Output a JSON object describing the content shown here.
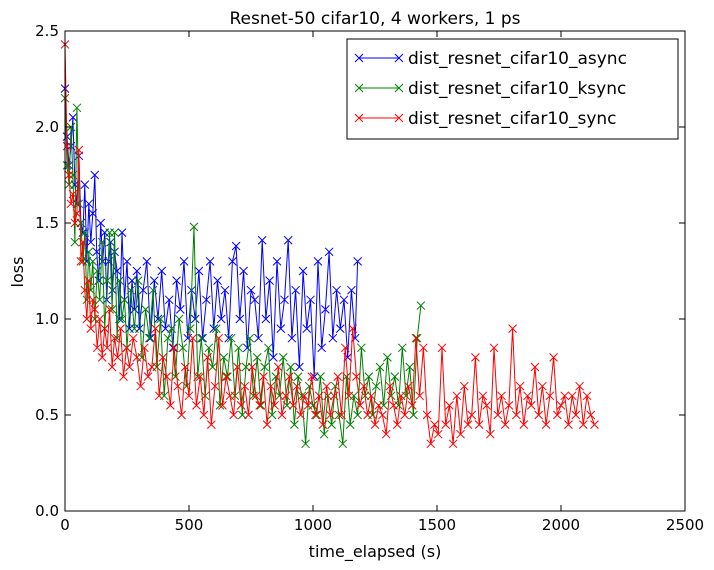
{
  "chart_data": {
    "type": "line",
    "title": "Resnet-50 cifar10, 4 workers, 1 ps",
    "xlabel": "time_elapsed (s)",
    "ylabel": "loss",
    "xlim": [
      0,
      2500
    ],
    "ylim": [
      0.0,
      2.5
    ],
    "xticks": [
      0,
      500,
      1000,
      1500,
      2000,
      2500
    ],
    "xtick_labels": [
      "0",
      "500",
      "1000",
      "1500",
      "2000",
      "2500"
    ],
    "yticks": [
      0.0,
      0.5,
      1.0,
      1.5,
      2.0,
      2.5
    ],
    "ytick_labels": [
      "0.0",
      "0.5",
      "1.0",
      "1.5",
      "2.0",
      "2.5"
    ],
    "grid": false,
    "legend_position": "top-right",
    "marker": "x",
    "series": [
      {
        "name": "dist_resnet_cifar10_async",
        "color": "#0000ff",
        "x": [
          0,
          8,
          16,
          24,
          32,
          40,
          48,
          56,
          64,
          72,
          80,
          88,
          96,
          104,
          112,
          120,
          128,
          136,
          144,
          152,
          160,
          168,
          176,
          184,
          192,
          200,
          210,
          220,
          230,
          240,
          250,
          260,
          270,
          280,
          290,
          300,
          315,
          330,
          345,
          360,
          375,
          390,
          405,
          420,
          435,
          450,
          465,
          480,
          495,
          510,
          525,
          540,
          555,
          570,
          585,
          600,
          615,
          630,
          645,
          660,
          675,
          690,
          705,
          720,
          735,
          750,
          765,
          780,
          795,
          810,
          825,
          840,
          855,
          870,
          885,
          900,
          915,
          930,
          945,
          960,
          975,
          990,
          1005,
          1020,
          1035,
          1050,
          1065,
          1080,
          1095,
          1110,
          1125,
          1140,
          1155,
          1170,
          1180
        ],
        "y": [
          2.2,
          1.95,
          1.8,
          1.9,
          2.05,
          1.7,
          1.6,
          1.85,
          1.5,
          1.45,
          1.7,
          1.3,
          1.6,
          1.4,
          1.55,
          1.75,
          1.35,
          1.2,
          1.5,
          1.3,
          1.45,
          1.1,
          1.3,
          1.4,
          1.15,
          1.35,
          1.25,
          1.0,
          1.45,
          1.1,
          1.3,
          0.95,
          1.2,
          1.05,
          1.25,
          0.95,
          1.15,
          1.3,
          0.9,
          1.2,
          1.0,
          1.25,
          0.95,
          1.1,
          0.85,
          1.2,
          1.05,
          1.3,
          0.9,
          1.15,
          1.0,
          1.25,
          0.9,
          1.1,
          1.3,
          0.95,
          1.2,
          1.0,
          1.15,
          0.9,
          1.3,
          1.38,
          1.0,
          1.25,
          0.85,
          1.15,
          1.1,
          0.9,
          1.41,
          1.0,
          1.2,
          0.8,
          1.3,
          0.95,
          1.1,
          1.41,
          0.9,
          1.15,
          0.75,
          1.25,
          0.95,
          1.1,
          0.7,
          1.3,
          0.85,
          1.05,
          1.35,
          0.9,
          1.15,
          0.95,
          1.1,
          0.8,
          1.15,
          0.9,
          1.3
        ]
      },
      {
        "name": "dist_resnet_cifar10_ksync",
        "color": "#008000",
        "x": [
          0,
          8,
          16,
          24,
          32,
          40,
          48,
          56,
          64,
          72,
          80,
          88,
          96,
          104,
          112,
          120,
          130,
          140,
          150,
          160,
          170,
          180,
          190,
          200,
          210,
          220,
          230,
          240,
          250,
          265,
          280,
          295,
          310,
          325,
          340,
          355,
          370,
          385,
          400,
          415,
          430,
          445,
          460,
          475,
          490,
          505,
          520,
          535,
          550,
          565,
          580,
          595,
          610,
          625,
          640,
          655,
          670,
          685,
          700,
          715,
          730,
          745,
          760,
          775,
          790,
          805,
          820,
          835,
          850,
          865,
          880,
          895,
          910,
          925,
          940,
          955,
          970,
          985,
          1000,
          1015,
          1030,
          1045,
          1060,
          1075,
          1090,
          1105,
          1120,
          1135,
          1150,
          1165,
          1180,
          1195,
          1210,
          1225,
          1240,
          1255,
          1270,
          1285,
          1300,
          1315,
          1330,
          1345,
          1360,
          1375,
          1390,
          1405,
          1420,
          1435
        ],
        "y": [
          2.15,
          1.8,
          1.7,
          2.0,
          1.75,
          1.4,
          2.1,
          1.6,
          1.5,
          1.3,
          1.45,
          1.1,
          1.35,
          1.15,
          1.3,
          1.0,
          1.25,
          1.1,
          1.4,
          0.95,
          1.2,
          1.45,
          1.05,
          1.45,
          0.9,
          1.2,
          1.0,
          1.1,
          0.85,
          1.15,
          0.95,
          1.2,
          0.8,
          1.05,
          0.9,
          1.15,
          0.75,
          1.0,
          0.6,
          0.9,
          0.95,
          0.7,
          1.0,
          0.85,
          0.65,
          0.95,
          1.48,
          0.7,
          0.9,
          0.6,
          0.85,
          0.75,
          0.95,
          0.55,
          0.8,
          0.7,
          0.9,
          0.6,
          0.85,
          0.5,
          0.75,
          0.9,
          0.6,
          0.8,
          0.55,
          0.75,
          0.85,
          0.5,
          0.7,
          0.6,
          0.8,
          0.55,
          0.75,
          0.45,
          0.7,
          0.6,
          0.35,
          0.65,
          0.55,
          0.5,
          0.7,
          0.4,
          0.6,
          0.45,
          0.65,
          0.5,
          0.35,
          0.7,
          0.45,
          0.6,
          0.5,
          0.85,
          0.6,
          0.7,
          0.5,
          0.65,
          0.75,
          0.55,
          0.8,
          0.6,
          0.7,
          0.55,
          0.85,
          0.6,
          0.75,
          0.5,
          0.9,
          1.07
        ]
      },
      {
        "name": "dist_resnet_cifar10_sync",
        "color": "#ff0000",
        "x": [
          0,
          8,
          16,
          24,
          32,
          40,
          48,
          56,
          64,
          72,
          80,
          88,
          96,
          104,
          112,
          120,
          130,
          140,
          150,
          160,
          170,
          180,
          190,
          200,
          212,
          224,
          236,
          248,
          260,
          275,
          290,
          305,
          320,
          335,
          350,
          365,
          380,
          395,
          410,
          425,
          440,
          455,
          470,
          485,
          500,
          515,
          530,
          545,
          560,
          575,
          590,
          605,
          620,
          635,
          650,
          665,
          680,
          695,
          710,
          725,
          740,
          755,
          770,
          785,
          800,
          815,
          830,
          845,
          860,
          875,
          890,
          905,
          920,
          935,
          950,
          965,
          980,
          995,
          1010,
          1025,
          1040,
          1055,
          1070,
          1085,
          1100,
          1115,
          1130,
          1145,
          1160,
          1175,
          1190,
          1205,
          1220,
          1235,
          1250,
          1265,
          1280,
          1295,
          1310,
          1325,
          1340,
          1355,
          1370,
          1385,
          1400,
          1415,
          1430,
          1445,
          1460,
          1475,
          1490,
          1505,
          1520,
          1535,
          1550,
          1565,
          1580,
          1595,
          1610,
          1625,
          1640,
          1655,
          1670,
          1685,
          1700,
          1715,
          1730,
          1745,
          1760,
          1775,
          1790,
          1805,
          1820,
          1835,
          1850,
          1865,
          1880,
          1895,
          1910,
          1925,
          1940,
          1955,
          1970,
          1985,
          2000,
          2015,
          2030,
          2045,
          2060,
          2075,
          2090,
          2105,
          2120,
          2135
        ],
        "y": [
          2.43,
          1.9,
          1.75,
          1.6,
          1.65,
          1.5,
          1.55,
          1.88,
          1.3,
          1.4,
          1.15,
          1.0,
          1.2,
          0.95,
          1.1,
          1.05,
          0.85,
          1.0,
          0.8,
          0.95,
          0.85,
          1.05,
          0.75,
          0.9,
          0.8,
          0.95,
          0.7,
          0.85,
          0.75,
          0.9,
          0.8,
          0.65,
          0.85,
          0.7,
          0.75,
          0.95,
          0.6,
          0.8,
          0.7,
          0.55,
          0.85,
          0.65,
          0.5,
          0.75,
          0.6,
          0.9,
          0.55,
          0.7,
          0.5,
          0.8,
          0.45,
          0.65,
          0.9,
          0.55,
          0.7,
          0.6,
          0.5,
          0.75,
          0.55,
          0.65,
          0.5,
          0.75,
          0.6,
          0.55,
          0.7,
          0.45,
          0.65,
          0.55,
          0.75,
          0.5,
          0.6,
          0.7,
          0.55,
          0.65,
          0.5,
          0.6,
          0.55,
          0.7,
          0.5,
          0.6,
          0.45,
          0.65,
          0.5,
          0.6,
          0.7,
          0.5,
          0.85,
          0.6,
          0.95,
          0.7,
          0.55,
          0.65,
          0.5,
          0.6,
          0.45,
          0.55,
          0.5,
          0.4,
          0.65,
          0.55,
          0.45,
          0.6,
          0.5,
          0.65,
          0.55,
          0.9,
          0.6,
          0.85,
          0.5,
          0.35,
          0.45,
          0.4,
          0.85,
          0.45,
          0.55,
          0.35,
          0.6,
          0.4,
          0.65,
          0.45,
          0.5,
          0.8,
          0.45,
          0.6,
          0.55,
          0.4,
          0.85,
          0.5,
          0.6,
          0.45,
          0.55,
          0.95,
          0.5,
          0.65,
          0.45,
          0.6,
          0.55,
          0.75,
          0.5,
          0.65,
          0.45,
          0.6,
          0.8,
          0.5,
          0.55,
          0.6,
          0.45,
          0.6,
          0.5,
          0.65,
          0.45,
          0.6,
          0.5,
          0.45
        ]
      }
    ]
  }
}
